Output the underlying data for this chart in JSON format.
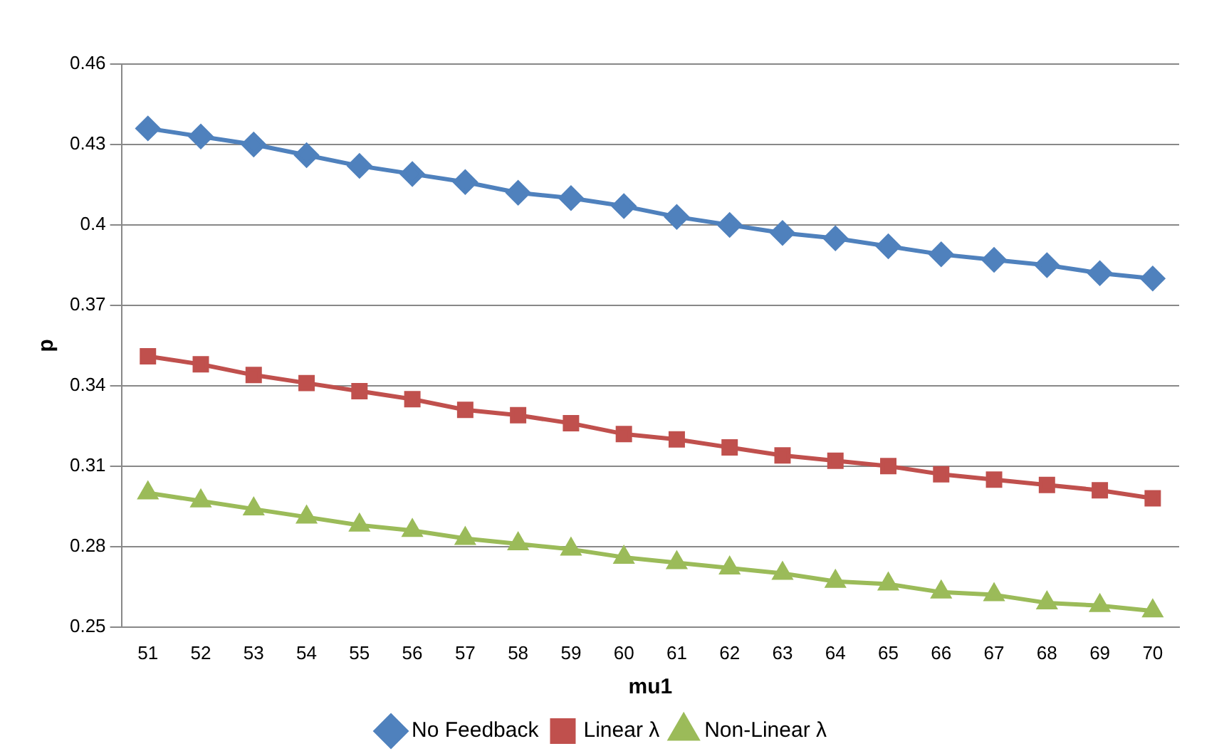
{
  "chart_data": {
    "type": "line",
    "xlabel": "mu1",
    "ylabel": "p",
    "categories": [
      "51",
      "52",
      "53",
      "54",
      "55",
      "56",
      "57",
      "58",
      "59",
      "60",
      "61",
      "62",
      "63",
      "64",
      "65",
      "66",
      "67",
      "68",
      "69",
      "70"
    ],
    "series": [
      {
        "name": "No Feedback",
        "color": "#4f81bd",
        "marker": "diamond",
        "values": [
          0.436,
          0.433,
          0.43,
          0.426,
          0.422,
          0.419,
          0.416,
          0.412,
          0.41,
          0.407,
          0.403,
          0.4,
          0.397,
          0.395,
          0.392,
          0.389,
          0.387,
          0.385,
          0.382,
          0.38
        ]
      },
      {
        "name": "Linear λ",
        "color": "#c0504d",
        "marker": "square",
        "values": [
          0.351,
          0.348,
          0.344,
          0.341,
          0.338,
          0.335,
          0.331,
          0.329,
          0.326,
          0.322,
          0.32,
          0.317,
          0.314,
          0.312,
          0.31,
          0.307,
          0.305,
          0.303,
          0.301,
          0.298
        ]
      },
      {
        "name": "Non-Linear λ",
        "color": "#9bbb59",
        "marker": "triangle",
        "values": [
          0.3,
          0.297,
          0.294,
          0.291,
          0.288,
          0.286,
          0.283,
          0.281,
          0.279,
          0.276,
          0.274,
          0.272,
          0.27,
          0.267,
          0.266,
          0.263,
          0.262,
          0.259,
          0.258,
          0.256
        ]
      }
    ],
    "ylim": [
      0.25,
      0.46
    ],
    "yticks": [
      0.25,
      0.28,
      0.31,
      0.34,
      0.37,
      0.4,
      0.43,
      0.46
    ],
    "grid": "y",
    "legend": "bottom",
    "line_style": "solid"
  }
}
